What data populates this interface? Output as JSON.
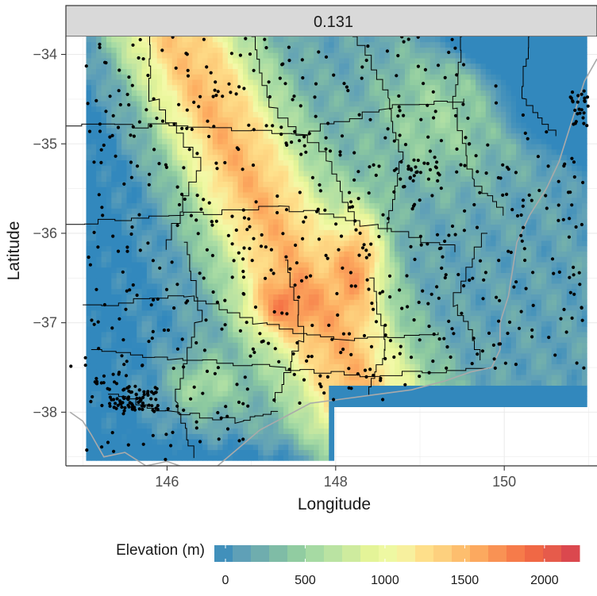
{
  "chart_data": {
    "type": "heatmap",
    "panel_title": "0.131",
    "xlabel": "Longitude",
    "ylabel": "Latitude",
    "xlim": [
      144.8,
      151.1
    ],
    "ylim": [
      -38.6,
      -33.8
    ],
    "x_ticks": [
      146,
      148,
      150
    ],
    "x_tick_labels": [
      "146",
      "148",
      "150"
    ],
    "y_ticks": [
      -34,
      -35,
      -36,
      -37,
      -38
    ],
    "y_tick_labels": [
      "−34",
      "−35",
      "−36",
      "−37",
      "−38"
    ],
    "grid": true,
    "legend": {
      "title": "Elevation (m)",
      "position": "bottom",
      "range": [
        0,
        2150
      ],
      "ticks": [
        0,
        500,
        1000,
        1500,
        2000
      ],
      "tick_labels": [
        "0",
        "500",
        "1000",
        "1500",
        "2000"
      ],
      "palette": [
        "#3288bd",
        "#5e9fb8",
        "#74b1ab",
        "#8cc9a0",
        "#abdda4",
        "#c6e7a0",
        "#e6f598",
        "#f3f9a8",
        "#fee08b",
        "#fdcb79",
        "#fdae61",
        "#f88d52",
        "#f46d43",
        "#e55a4b",
        "#d53e4f"
      ]
    },
    "series": [
      {
        "name": "",
        "kind": "elevation-raster"
      },
      {
        "name": "",
        "kind": "region-boundaries",
        "color": "#000000"
      },
      {
        "name": "",
        "kind": "coastline",
        "color": "#aaaaaa"
      },
      {
        "name": "",
        "kind": "points",
        "color": "#000000"
      }
    ]
  }
}
